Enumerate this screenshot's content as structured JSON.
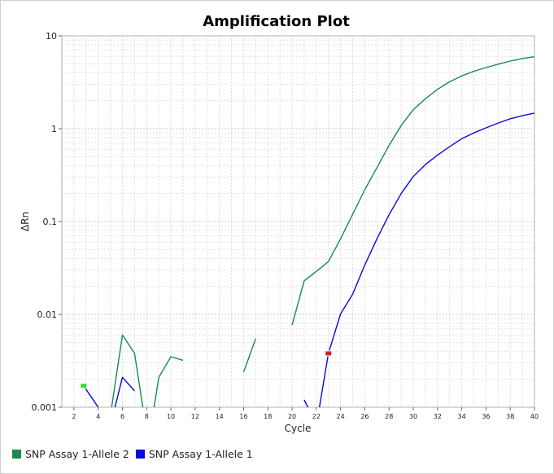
{
  "chart_data": {
    "type": "line",
    "title": "Amplification Plot",
    "xlabel": "Cycle",
    "ylabel": "ΔRn",
    "y_scale": "log",
    "xlim": [
      1,
      40
    ],
    "ylim": [
      0.001,
      10
    ],
    "x_ticks": [
      2,
      4,
      6,
      8,
      10,
      12,
      14,
      16,
      18,
      20,
      22,
      24,
      26,
      28,
      30,
      32,
      34,
      36,
      38,
      40
    ],
    "y_ticks": [
      {
        "value": 0.001,
        "label": "0.001"
      },
      {
        "value": 0.01,
        "label": "0.01"
      },
      {
        "value": 0.1,
        "label": "0.1"
      },
      {
        "value": 1,
        "label": "1"
      },
      {
        "value": 10,
        "label": "10"
      }
    ],
    "grid": true,
    "legend_position": "bottom-left",
    "series": [
      {
        "name": "SNP Assay 1-Allele 2",
        "color": "#1a8a4e",
        "segments": [
          [
            [
              5,
              0.0008
            ],
            [
              6,
              0.006
            ],
            [
              7,
              0.0038
            ],
            [
              7.8,
              0.0008
            ]
          ],
          [
            [
              8.5,
              0.0008
            ],
            [
              9,
              0.0021
            ],
            [
              10,
              0.0035
            ],
            [
              11,
              0.0032
            ]
          ],
          [
            [
              16,
              0.0024
            ],
            [
              17,
              0.0055
            ]
          ],
          [
            [
              20,
              0.0077
            ],
            [
              21,
              0.023
            ],
            [
              22,
              0.029
            ],
            [
              23,
              0.037
            ],
            [
              24,
              0.065
            ],
            [
              25,
              0.12
            ],
            [
              26,
              0.22
            ],
            [
              27,
              0.38
            ],
            [
              28,
              0.66
            ],
            [
              29,
              1.08
            ],
            [
              30,
              1.6
            ],
            [
              31,
              2.1
            ],
            [
              32,
              2.65
            ],
            [
              33,
              3.2
            ],
            [
              34,
              3.7
            ],
            [
              35,
              4.15
            ],
            [
              36,
              4.55
            ],
            [
              37,
              4.95
            ],
            [
              38,
              5.35
            ],
            [
              39,
              5.7
            ],
            [
              40,
              5.95
            ]
          ]
        ],
        "marker": {
          "x": 2.8,
          "y": 0.0017,
          "color": "#33dd33"
        }
      },
      {
        "name": "SNP Assay 1-Allele 1",
        "color": "#0a0adf",
        "segments": [
          [
            [
              2.8,
              0.0017
            ],
            [
              4,
              0.001
            ]
          ],
          [
            [
              5.2,
              0.0008
            ],
            [
              6,
              0.0021
            ],
            [
              7,
              0.0015
            ]
          ],
          [
            [
              21,
              0.0012
            ],
            [
              21.3,
              0.001
            ]
          ],
          [
            [
              22.2,
              0.0009
            ],
            [
              23,
              0.0038
            ],
            [
              24,
              0.0101
            ],
            [
              25,
              0.0165
            ],
            [
              26,
              0.034
            ],
            [
              27,
              0.065
            ],
            [
              28,
              0.118
            ],
            [
              29,
              0.2
            ],
            [
              30,
              0.305
            ],
            [
              31,
              0.41
            ],
            [
              32,
              0.52
            ],
            [
              33,
              0.64
            ],
            [
              34,
              0.78
            ],
            [
              35,
              0.9
            ],
            [
              36,
              1.02
            ],
            [
              37,
              1.15
            ],
            [
              38,
              1.28
            ],
            [
              39,
              1.38
            ],
            [
              40,
              1.47
            ]
          ]
        ],
        "marker": {
          "x": 23,
          "y": 0.0038,
          "color": "#e11b1b"
        }
      }
    ]
  }
}
